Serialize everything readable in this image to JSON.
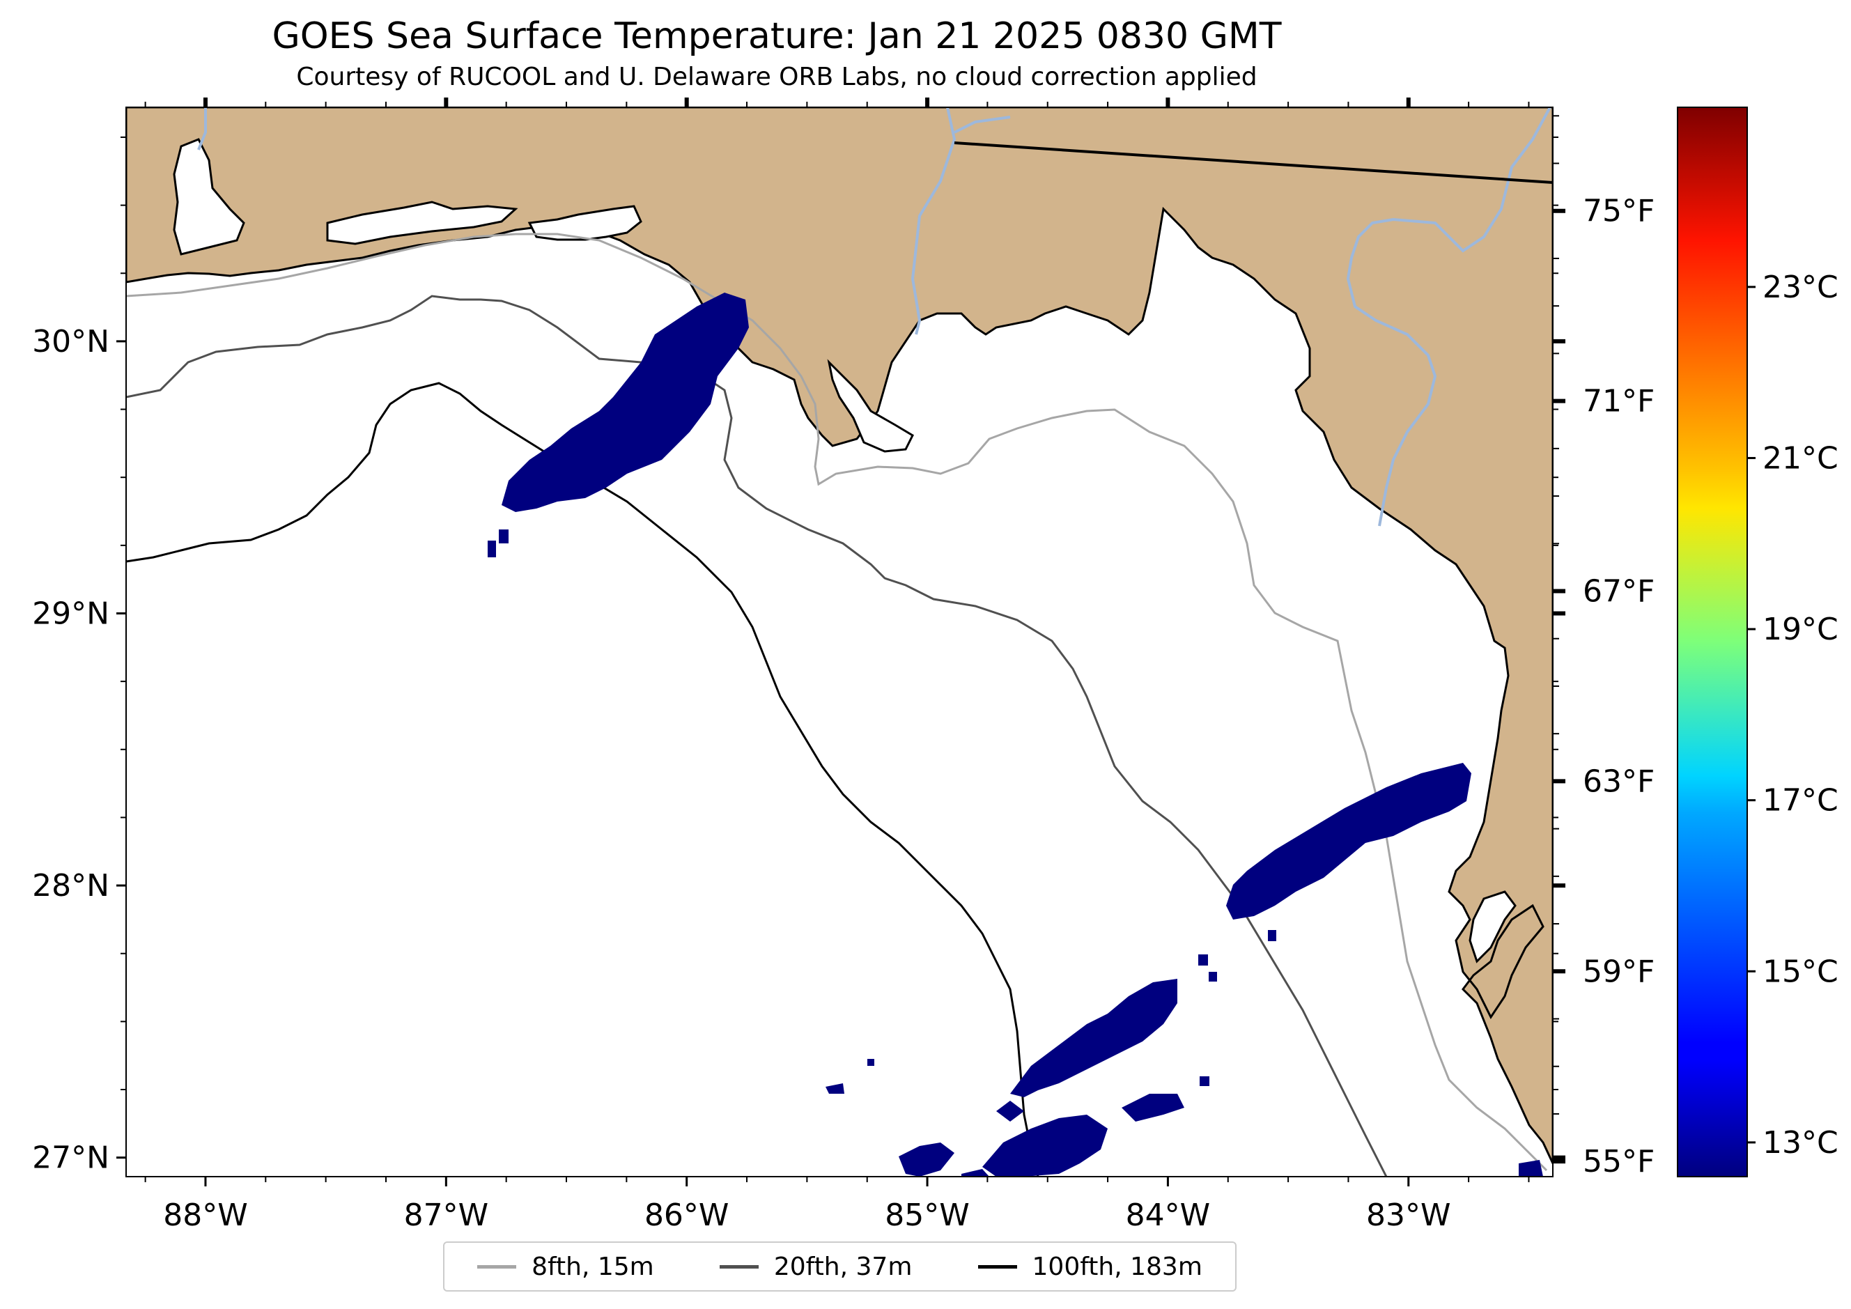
{
  "title": "GOES Sea Surface Temperature: Jan 21 2025 0830 GMT",
  "subtitle": "Courtesy of RUCOOL and U. Delaware ORB Labs, no cloud correction applied",
  "map": {
    "land_color": "#d2b48c",
    "sea_color": "#ffffff",
    "river_color": "#9db8dc",
    "masked_sst_color": "#00007f",
    "x_ticks": [
      {
        "lon": -88,
        "label": "88°W"
      },
      {
        "lon": -87,
        "label": "87°W"
      },
      {
        "lon": -86,
        "label": "86°W"
      },
      {
        "lon": -85,
        "label": "85°W"
      },
      {
        "lon": -84,
        "label": "84°W"
      },
      {
        "lon": -83,
        "label": "83°W"
      }
    ],
    "y_ticks": [
      {
        "lat": 30,
        "label": "30°N"
      },
      {
        "lat": 29,
        "label": "29°N"
      },
      {
        "lat": 28,
        "label": "28°N"
      },
      {
        "lat": 27,
        "label": "27°N"
      }
    ],
    "lon_range": [
      -88.33,
      -82.4
    ],
    "lat_range": [
      26.93,
      30.86
    ]
  },
  "colorbar": {
    "colormap": "jet",
    "fahrenheit_labels": [
      "75°F",
      "71°F",
      "67°F",
      "63°F",
      "59°F",
      "55°F"
    ],
    "celsius_labels": [
      "23°C",
      "21°C",
      "19°C",
      "17°C",
      "15°C",
      "13°C"
    ],
    "celsius_range": [
      12.6,
      25.1
    ]
  },
  "legend": [
    {
      "label": "8fth, 15m",
      "color": "#a6a6a6"
    },
    {
      "label": "20fth, 37m",
      "color": "#505050"
    },
    {
      "label": "100fth, 183m",
      "color": "#000000"
    }
  ]
}
